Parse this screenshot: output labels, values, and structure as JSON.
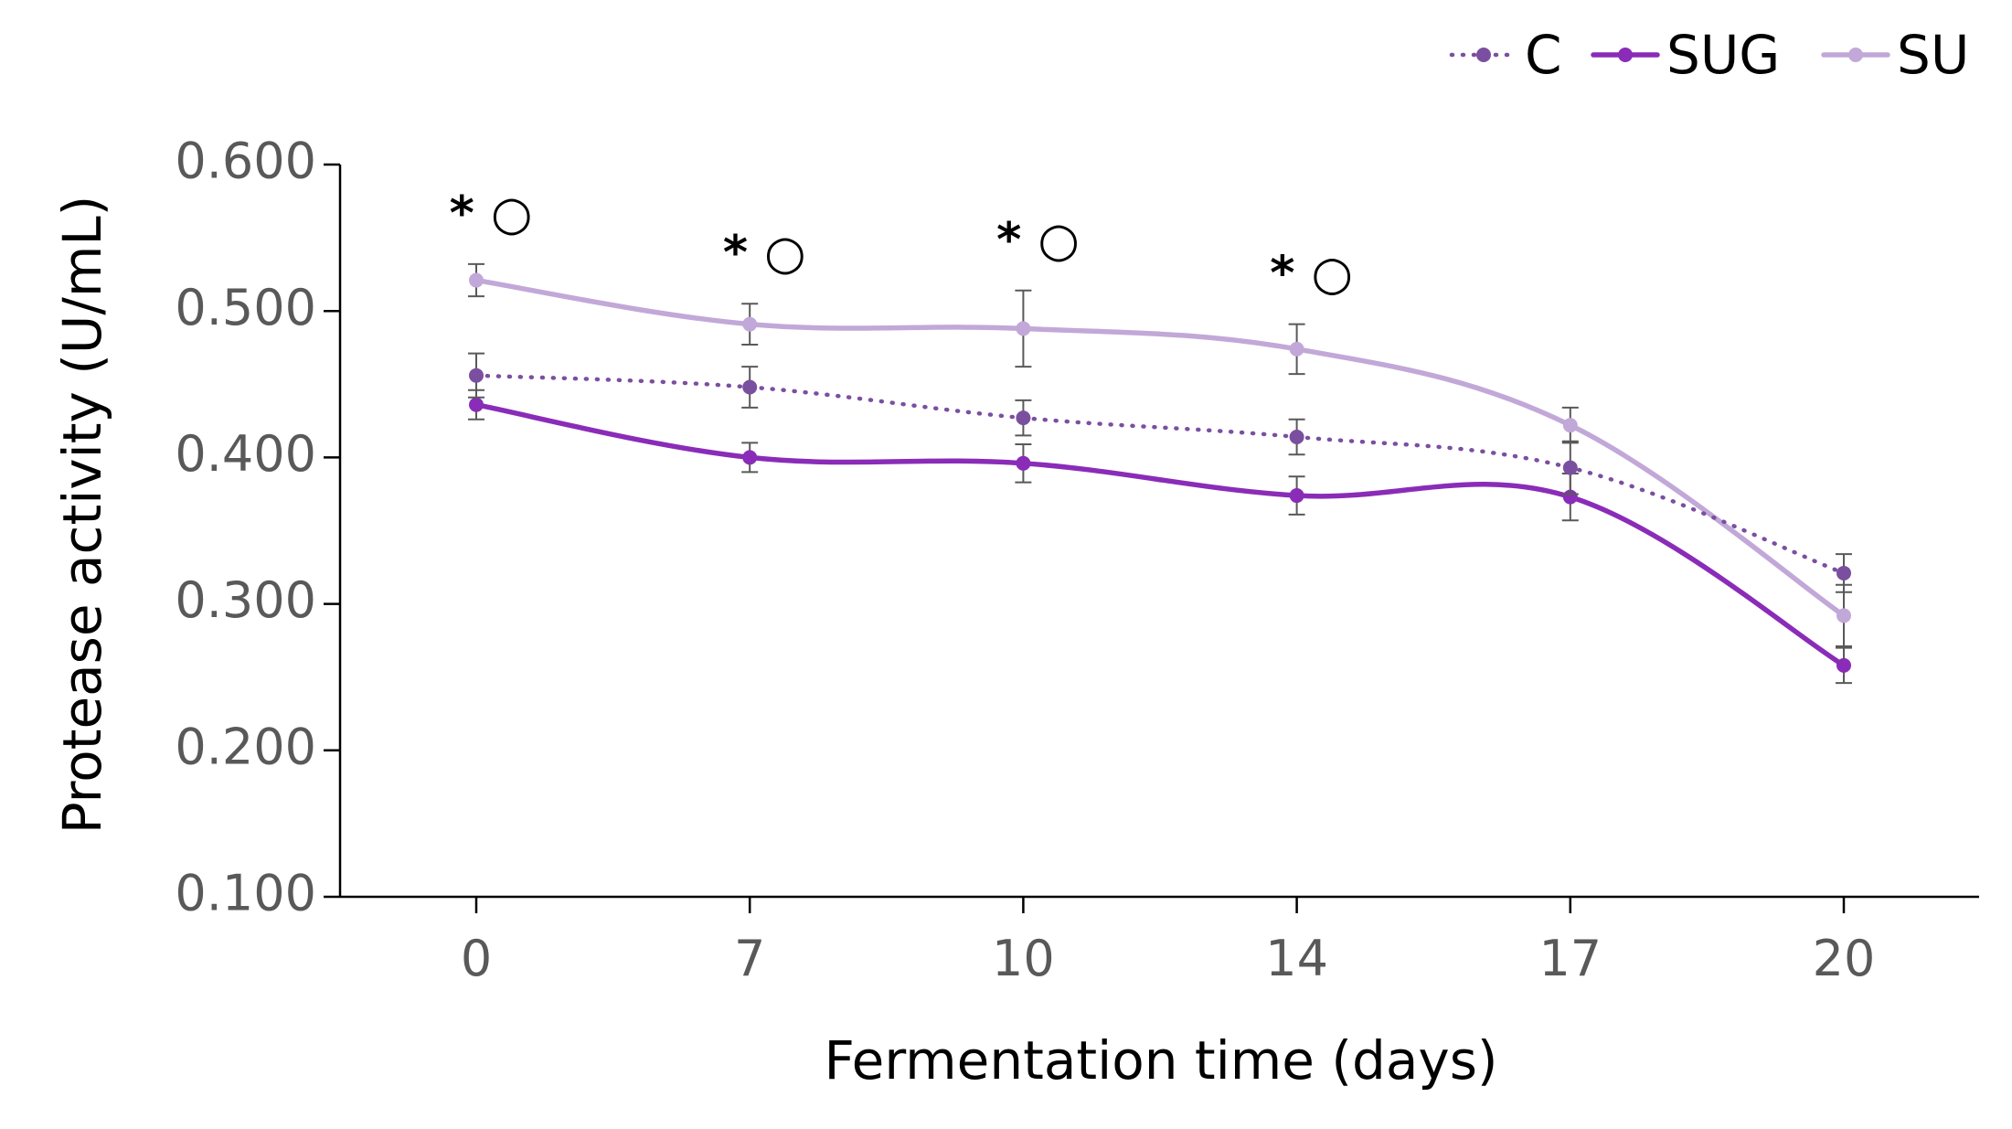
{
  "chart_data": {
    "type": "line",
    "title": "",
    "xlabel": "Fermentation time (days)",
    "ylabel": "Protease activity (U/mL)",
    "categories": [
      "0",
      "7",
      "10",
      "14",
      "17",
      "20"
    ],
    "ylim": [
      0.1,
      0.6
    ],
    "yticks": [
      "0.100",
      "0.200",
      "0.300",
      "0.400",
      "0.500",
      "0.600"
    ],
    "legend_position": "top-right",
    "series": [
      {
        "name": "C",
        "color": "#7b4fa0",
        "style": "dotted",
        "values": [
          0.456,
          0.448,
          0.427,
          0.414,
          0.393,
          0.321
        ],
        "errors": [
          0.015,
          0.014,
          0.012,
          0.012,
          0.018,
          0.013
        ]
      },
      {
        "name": "SUG",
        "color": "#8a2cb8",
        "style": "solid",
        "values": [
          0.436,
          0.4,
          0.396,
          0.374,
          0.373,
          0.258
        ],
        "errors": [
          0.01,
          0.01,
          0.013,
          0.013,
          0.016,
          0.012
        ]
      },
      {
        "name": "SU",
        "color": "#c2a8d8",
        "style": "solid",
        "values": [
          0.521,
          0.491,
          0.488,
          0.474,
          0.422,
          0.292
        ],
        "errors": [
          0.011,
          0.014,
          0.026,
          0.017,
          0.012,
          0.021
        ]
      }
    ],
    "annotations": [
      {
        "category": "0",
        "text": "* ○"
      },
      {
        "category": "7",
        "text": "* ○"
      },
      {
        "category": "10",
        "text": "* ○"
      },
      {
        "category": "14",
        "text": "* ○"
      }
    ]
  }
}
